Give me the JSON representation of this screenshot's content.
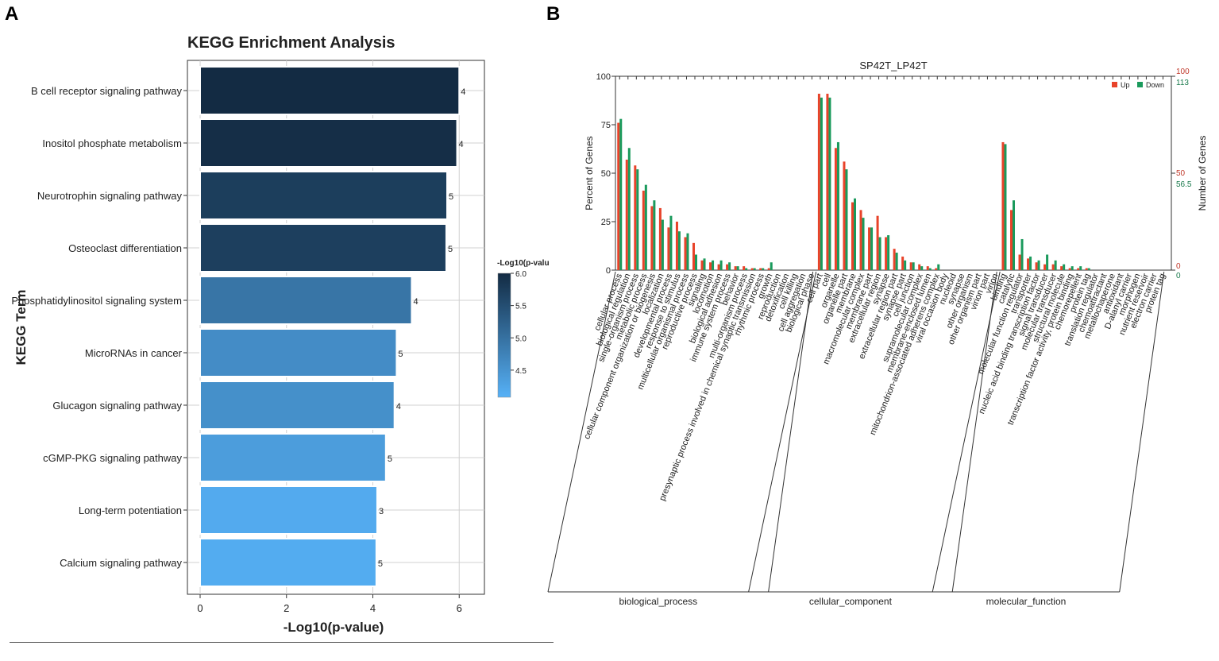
{
  "panels": {
    "a_label": "A",
    "b_label": "B"
  },
  "chart_data": [
    {
      "type": "bar",
      "orientation": "horizontal",
      "title": "KEGG Enrichment Analysis",
      "xlabel": "-Log10(p-value)",
      "ylabel": "KEGG Term",
      "xlim": [
        0,
        6.4
      ],
      "xticks": [
        0,
        2,
        4,
        6
      ],
      "categories": [
        "B cell receptor signaling pathway",
        "Inositol phosphate metabolism",
        "Neurotrophin signaling pathway",
        "Osteoclast differentiation",
        "Phosphatidylinositol signaling system",
        "MicroRNAs in cancer",
        "Glucagon signaling pathway",
        "cGMP-PKG signaling pathway",
        "Long-term potentiation",
        "Calcium signaling pathway"
      ],
      "values": [
        6.0,
        5.95,
        5.72,
        5.7,
        4.9,
        4.55,
        4.5,
        4.3,
        4.1,
        4.08
      ],
      "counts": [
        "4",
        "4",
        "5",
        "5",
        "4",
        "5",
        "4",
        "5",
        "3",
        "5"
      ],
      "colorbar": {
        "title": "-Log10(p-valu",
        "ticks": [
          "6.0",
          "5.5",
          "5.0",
          "4.5"
        ],
        "low_color": "#56b1f7",
        "high_color": "#132b43"
      }
    },
    {
      "type": "bar",
      "title": "SP42T_LP42T",
      "ylabel": "Percent of Genes",
      "y2label": "Number of Genes",
      "ylim": [
        0,
        100
      ],
      "yticks": [
        "0",
        "25",
        "50",
        "75",
        "100"
      ],
      "right_ticks_up": [
        "0",
        "50",
        "100"
      ],
      "right_ticks_down": [
        "0",
        "56.5",
        "113"
      ],
      "legend": [
        "Up",
        "Down"
      ],
      "series_colors": [
        "#e8432a",
        "#1a9a5c"
      ],
      "groups": [
        "biological_process",
        "cellular_component",
        "molecular_function"
      ],
      "categories": [
        "cellular process",
        "biological regulation",
        "single-organism process",
        "metabolic process",
        "cellular component organization or biogenesis",
        "localization",
        "developmental process",
        "response to stimulus",
        "multicellular organismal process",
        "reproductive process",
        "signaling",
        "locomotion",
        "biological adhesion",
        "immune system process",
        "behavior",
        "multi-organism process",
        "presynaptic process involved in chemical synaptic transmission",
        "rhythmic process",
        "growth",
        "reproduction",
        "detoxification",
        "cell killing",
        "cell aggregation",
        "biological phase",
        "cell part",
        "cell",
        "organelle",
        "organelle part",
        "membrane",
        "macromolecular complex",
        "membrane part",
        "extracellular region",
        "synapse",
        "extracellular region part",
        "synapse part",
        "cell junction",
        "supramolecular complex",
        "membrane-enclosed lumen",
        "mitochondrion-associated adherens complex",
        "viral occasion body",
        "nucleoid",
        "synapse",
        "other organism",
        "other organism part",
        "virion part",
        "virion",
        "binding",
        "catalytic",
        "molecular function regulator",
        "transporter",
        "nucleic acid binding transcription factor",
        "signal transducer",
        "molecular transducer",
        "structural molecule",
        "transcription factor activity, protein binding",
        "chemorepellent",
        "protein tag",
        "translation regulator",
        "chemoattractant",
        "metallochaperone",
        "antioxidant",
        "D-alanyl carrier",
        "morphogen",
        "nutrient reservoir",
        "electron carrier",
        "protein tag"
      ],
      "category_groups": [
        24,
        22,
        20
      ],
      "series": [
        {
          "name": "Up",
          "values": [
            76,
            57,
            54,
            41,
            33,
            32,
            22,
            25,
            17,
            14,
            5,
            4,
            3,
            3,
            2,
            2,
            1,
            1,
            1,
            0,
            0,
            0,
            0,
            0,
            91,
            91,
            63,
            56,
            35,
            31,
            22,
            28,
            17,
            11,
            7,
            4,
            3,
            2,
            1,
            0,
            0,
            0,
            0,
            0,
            0,
            0,
            66,
            31,
            8,
            6,
            4,
            3,
            3,
            2,
            1,
            1,
            1,
            0,
            0,
            0,
            0,
            0,
            0,
            0,
            0,
            0
          ]
        },
        {
          "name": "Down",
          "values": [
            78,
            63,
            52,
            44,
            36,
            26,
            28,
            20,
            19,
            8,
            6,
            5,
            5,
            4,
            2,
            1,
            1,
            1,
            4,
            0,
            0,
            0,
            0,
            0,
            89,
            89,
            66,
            52,
            37,
            27,
            22,
            17,
            18,
            9,
            5,
            4,
            2,
            1,
            3,
            0,
            0,
            0,
            0,
            0,
            0,
            0,
            65,
            36,
            16,
            7,
            5,
            8,
            5,
            3,
            2,
            2,
            1,
            0,
            0,
            0,
            0,
            0,
            0,
            0,
            0,
            0
          ]
        }
      ]
    }
  ]
}
